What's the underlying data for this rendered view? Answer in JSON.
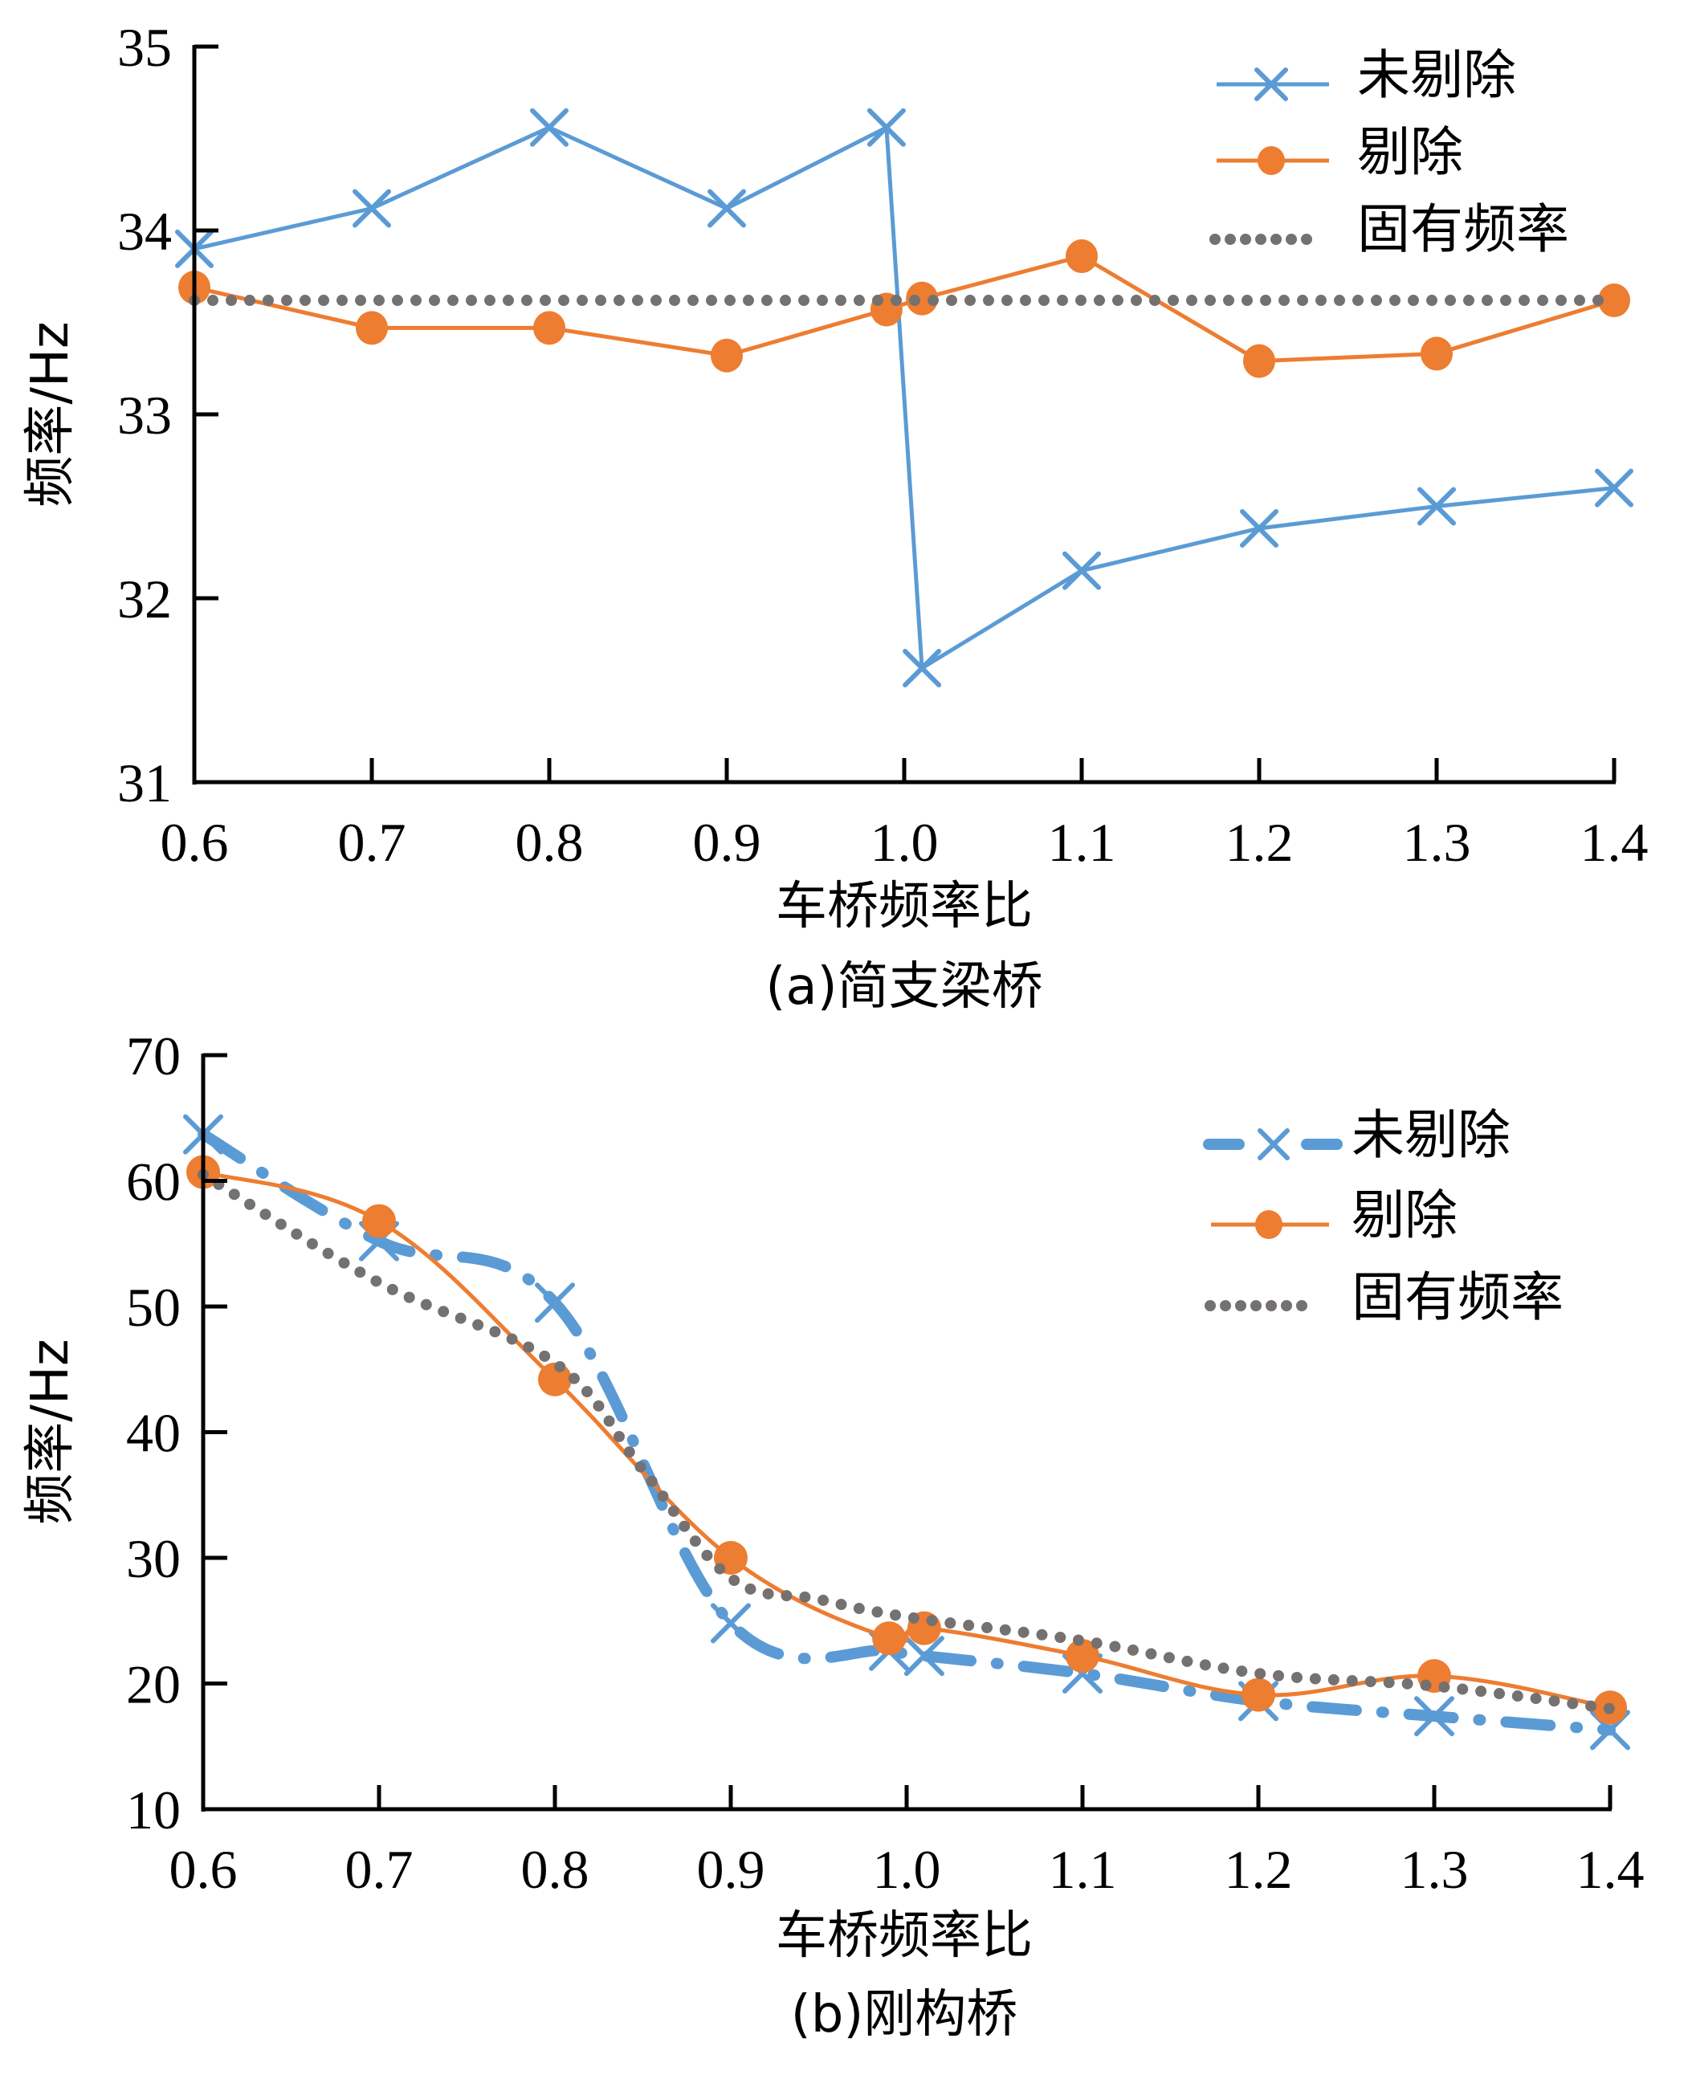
{
  "colors": {
    "unremoved": "#5B9BD5",
    "removed": "#ED7D31",
    "natural": "#767171",
    "axis": "#000000"
  },
  "chart_data": [
    {
      "id": "a",
      "type": "line",
      "caption": "(a)简支梁桥",
      "xlabel": "车桥频率比",
      "ylabel": "频率/Hz",
      "xlim": [
        0.6,
        1.4
      ],
      "ylim": [
        31,
        35
      ],
      "xticks": [
        "0.6",
        "0.7",
        "0.8",
        "0.9",
        "1.0",
        "1.1",
        "1.2",
        "1.3",
        "1.4"
      ],
      "yticks": [
        "31",
        "32",
        "33",
        "34",
        "35"
      ],
      "grid": false,
      "legend_position": "top-right",
      "series": [
        {
          "name": "未剔除",
          "style": "solid-cross",
          "x": [
            0.6,
            0.7,
            0.8,
            0.9,
            0.99,
            1.01,
            1.1,
            1.2,
            1.3,
            1.4
          ],
          "y": [
            33.9,
            34.12,
            34.56,
            34.12,
            34.56,
            31.62,
            32.15,
            32.38,
            32.5,
            32.6
          ]
        },
        {
          "name": "剔除",
          "style": "solid-circle",
          "x": [
            0.6,
            0.7,
            0.8,
            0.9,
            0.99,
            1.01,
            1.1,
            1.2,
            1.3,
            1.4
          ],
          "y": [
            33.69,
            33.47,
            33.47,
            33.32,
            33.57,
            33.63,
            33.86,
            33.29,
            33.33,
            33.62
          ]
        },
        {
          "name": "固有频率",
          "style": "dotted",
          "x": [
            0.6,
            1.4
          ],
          "y": [
            33.62,
            33.62
          ]
        }
      ]
    },
    {
      "id": "b",
      "type": "line",
      "caption": "(b)刚构桥",
      "xlabel": "车桥频率比",
      "ylabel": "频率/Hz",
      "xlim": [
        0.6,
        1.4
      ],
      "ylim": [
        10,
        70
      ],
      "xticks": [
        "0.6",
        "0.7",
        "0.8",
        "0.9",
        "1.0",
        "1.1",
        "1.2",
        "1.3",
        "1.4"
      ],
      "yticks": [
        "10",
        "20",
        "30",
        "40",
        "50",
        "60",
        "70"
      ],
      "grid": false,
      "legend_position": "top-right",
      "series": [
        {
          "name": "未剔除",
          "style": "dashdot-cross",
          "x": [
            0.6,
            0.7,
            0.8,
            0.9,
            0.99,
            1.01,
            1.1,
            1.2,
            1.3,
            1.4
          ],
          "y": [
            63.7,
            55.2,
            50.3,
            24.8,
            22.6,
            22.2,
            20.8,
            18.6,
            17.4,
            16.3
          ]
        },
        {
          "name": "剔除",
          "style": "smooth-circle",
          "x": [
            0.6,
            0.7,
            0.8,
            0.9,
            0.99,
            1.01,
            1.1,
            1.2,
            1.3,
            1.4
          ],
          "y": [
            60.7,
            56.8,
            44.2,
            30.0,
            23.6,
            24.4,
            22.2,
            19.1,
            20.6,
            18.1
          ]
        },
        {
          "name": "固有频率",
          "style": "dotted-smooth",
          "x": [
            0.6,
            0.7,
            0.8,
            0.85,
            0.9,
            0.95,
            1.0,
            1.1,
            1.2,
            1.3,
            1.4
          ],
          "y": [
            60.5,
            51.9,
            45.5,
            37.0,
            28.4,
            26.7,
            25.3,
            23.4,
            20.8,
            19.8,
            18.0
          ]
        }
      ]
    }
  ]
}
